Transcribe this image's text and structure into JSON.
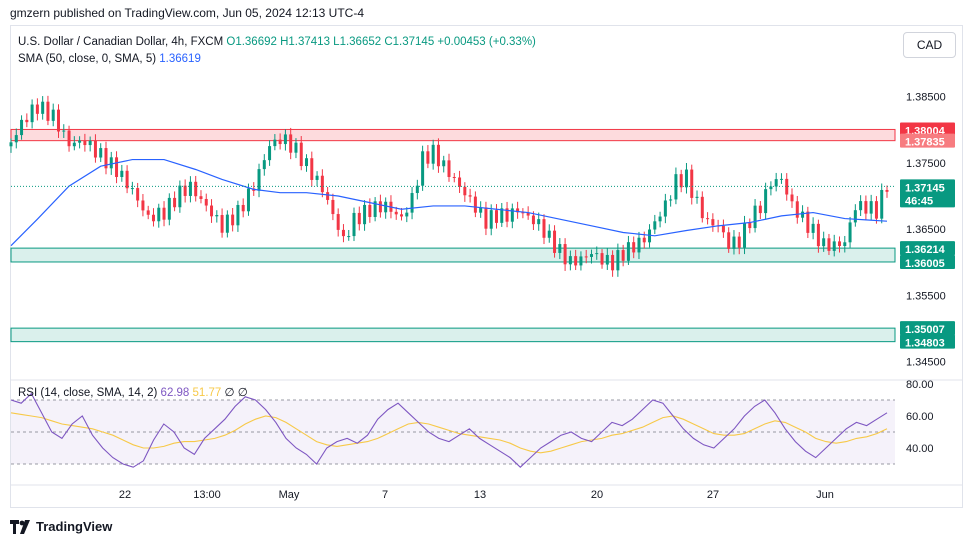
{
  "header": {
    "publisher_line": "gmzern published on TradingView.com, Jun 05, 2024 12:13 UTC-4"
  },
  "legend": {
    "title": "U.S. Dollar / Canadian Dollar, 4h, FXCM",
    "O": "O1.36692",
    "H": "H1.37413",
    "L": "L1.36652",
    "C": "C1.37145",
    "change": "+0.00453 (+0.33%)",
    "sma_label": "SMA (50, close, 0, SMA, 5)",
    "sma_value": "1.36619"
  },
  "currency_button": "CAD",
  "footer": {
    "brand": "TradingView"
  },
  "colors": {
    "up": "#089981",
    "down": "#f23645",
    "sma": "#2962ff",
    "rsi": "#7e57c2",
    "rsi_ma": "#f7c948",
    "resistance": "#f23645",
    "support": "#089981"
  },
  "chart_data": [
    {
      "type": "candlestick",
      "title": "U.S. Dollar / Canadian Dollar, 4h, FXCM",
      "price_ticks": [
        "1.38500",
        "1.37500",
        "1.36500",
        "1.35500",
        "1.34500"
      ],
      "price_tick_values": [
        1.385,
        1.375,
        1.365,
        1.355,
        1.345
      ],
      "ylim": [
        1.343,
        1.3875
      ],
      "x_tick_labels": [
        "22",
        "13:00",
        "May",
        "7",
        "13",
        "20",
        "27",
        "Jun"
      ],
      "current_price": "1.37145",
      "countdown": "46:45",
      "resistance_zone": {
        "labels": [
          "1.38004",
          "1.37835"
        ],
        "values": [
          1.38004,
          1.37835
        ]
      },
      "support_zone": {
        "labels": [
          "1.36214",
          "1.36005"
        ],
        "values": [
          1.36214,
          1.36005
        ]
      },
      "support_zone_2": {
        "labels": [
          "1.35007",
          "1.34803"
        ],
        "values": [
          1.35007,
          1.34803
        ]
      },
      "close_path": [
        [
          0,
          1.3775
        ],
        [
          5,
          1.381
        ],
        [
          10,
          1.383
        ],
        [
          16,
          1.3815
        ],
        [
          22,
          1.3775
        ],
        [
          28,
          1.378
        ],
        [
          34,
          1.376
        ],
        [
          40,
          1.374
        ],
        [
          46,
          1.371
        ],
        [
          52,
          1.367
        ],
        [
          58,
          1.368
        ],
        [
          64,
          1.371
        ],
        [
          68,
          1.372
        ],
        [
          72,
          1.37
        ],
        [
          76,
          1.368
        ],
        [
          80,
          1.366
        ],
        [
          86,
          1.368
        ],
        [
          92,
          1.372
        ],
        [
          98,
          1.378
        ],
        [
          103,
          1.379
        ],
        [
          108,
          1.377
        ],
        [
          113,
          1.374
        ],
        [
          118,
          1.371
        ],
        [
          122,
          1.367
        ],
        [
          126,
          1.363
        ],
        [
          130,
          1.366
        ],
        [
          136,
          1.3675
        ],
        [
          142,
          1.368
        ],
        [
          148,
          1.366
        ],
        [
          152,
          1.369
        ],
        [
          156,
          1.375
        ],
        [
          160,
          1.376
        ],
        [
          164,
          1.374
        ],
        [
          168,
          1.372
        ],
        [
          172,
          1.37
        ],
        [
          176,
          1.368
        ],
        [
          180,
          1.366
        ],
        [
          184,
          1.367
        ],
        [
          188,
          1.367
        ],
        [
          192,
          1.368
        ],
        [
          196,
          1.367
        ],
        [
          200,
          1.366
        ],
        [
          204,
          1.364
        ],
        [
          208,
          1.362
        ],
        [
          212,
          1.3605
        ],
        [
          216,
          1.361
        ],
        [
          220,
          1.362
        ],
        [
          224,
          1.361
        ],
        [
          228,
          1.3605
        ],
        [
          232,
          1.362
        ],
        [
          236,
          1.363
        ],
        [
          240,
          1.364
        ],
        [
          244,
          1.3665
        ],
        [
          248,
          1.369
        ],
        [
          252,
          1.3725
        ],
        [
          256,
          1.373
        ],
        [
          260,
          1.369
        ],
        [
          264,
          1.366
        ],
        [
          268,
          1.3655
        ],
        [
          272,
          1.3625
        ],
        [
          276,
          1.363
        ],
        [
          280,
          1.366
        ],
        [
          284,
          1.368
        ],
        [
          288,
          1.3715
        ],
        [
          292,
          1.372
        ],
        [
          296,
          1.368
        ],
        [
          300,
          1.366
        ],
        [
          304,
          1.364
        ],
        [
          308,
          1.362
        ],
        [
          312,
          1.362
        ],
        [
          316,
          1.3625
        ],
        [
          320,
          1.368
        ],
        [
          324,
          1.368
        ],
        [
          328,
          1.3675
        ],
        [
          332,
          1.3715
        ]
      ],
      "sma_path": [
        [
          0,
          1.3625
        ],
        [
          10,
          1.3665
        ],
        [
          22,
          1.3715
        ],
        [
          34,
          1.3745
        ],
        [
          46,
          1.3755
        ],
        [
          58,
          1.3755
        ],
        [
          70,
          1.374
        ],
        [
          80,
          1.3725
        ],
        [
          92,
          1.371
        ],
        [
          102,
          1.3705
        ],
        [
          112,
          1.3705
        ],
        [
          124,
          1.37
        ],
        [
          136,
          1.369
        ],
        [
          148,
          1.368
        ],
        [
          160,
          1.3685
        ],
        [
          172,
          1.3685
        ],
        [
          184,
          1.368
        ],
        [
          196,
          1.3675
        ],
        [
          208,
          1.3665
        ],
        [
          220,
          1.3655
        ],
        [
          232,
          1.3645
        ],
        [
          244,
          1.364
        ],
        [
          256,
          1.3648
        ],
        [
          268,
          1.3655
        ],
        [
          280,
          1.366
        ],
        [
          292,
          1.367
        ],
        [
          304,
          1.3675
        ],
        [
          316,
          1.3666
        ],
        [
          324,
          1.3664
        ],
        [
          332,
          1.3662
        ]
      ]
    },
    {
      "type": "line",
      "title": "RSI (14, close, SMA, 14, 2)",
      "rsi_value": "62.98",
      "rsi_ma_value": "51.77",
      "extra_values": [
        "∅",
        "∅"
      ],
      "y_ticks": [
        "80.00",
        "60.00",
        "40.00"
      ],
      "y_tick_values": [
        80,
        60,
        40
      ],
      "bands": [
        70,
        50,
        30
      ],
      "ylim": [
        20,
        80
      ],
      "series": [
        {
          "name": "RSI",
          "values": [
            70,
            68,
            74,
            62,
            50,
            46,
            55,
            60,
            48,
            40,
            34,
            30,
            28,
            32,
            45,
            55,
            50,
            40,
            36,
            46,
            52,
            58,
            66,
            72,
            70,
            64,
            56,
            46,
            40,
            36,
            30,
            40,
            44,
            46,
            43,
            48,
            58,
            64,
            68,
            62,
            56,
            50,
            46,
            44,
            48,
            52,
            46,
            42,
            38,
            34,
            28,
            34,
            40,
            44,
            48,
            50,
            46,
            44,
            50,
            56,
            54,
            58,
            64,
            70,
            68,
            60,
            52,
            46,
            42,
            40,
            46,
            52,
            60,
            66,
            70,
            62,
            52,
            44,
            38,
            34,
            40,
            46,
            52,
            56,
            54,
            58,
            62
          ]
        },
        {
          "name": "RSI-based MA",
          "values": [
            62,
            61,
            60,
            59,
            57,
            55,
            54,
            53,
            52,
            50,
            48,
            45,
            42,
            40,
            40,
            41,
            43,
            44,
            44,
            45,
            46,
            48,
            51,
            55,
            58,
            60,
            59,
            56,
            52,
            48,
            44,
            42,
            41,
            42,
            43,
            44,
            46,
            49,
            52,
            55,
            56,
            55,
            53,
            51,
            49,
            48,
            47,
            46,
            45,
            43,
            40,
            38,
            37,
            38,
            40,
            42,
            44,
            45,
            46,
            48,
            49,
            51,
            53,
            56,
            59,
            60,
            58,
            55,
            52,
            49,
            48,
            48,
            49,
            52,
            55,
            57,
            56,
            53,
            50,
            46,
            44,
            43,
            44,
            46,
            47,
            49,
            52
          ]
        }
      ]
    }
  ]
}
